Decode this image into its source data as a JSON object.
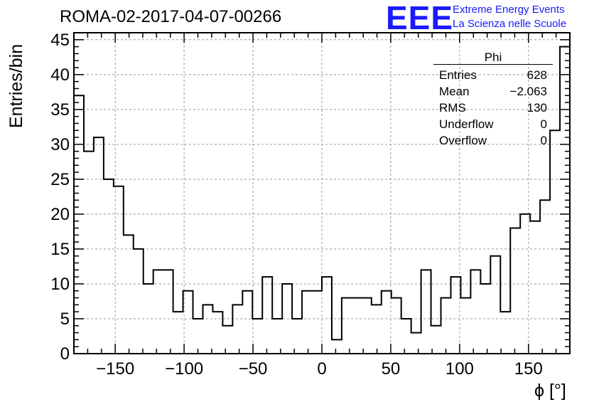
{
  "header": {
    "title": "ROMA-02-2017-04-07-00266",
    "logo_text": "EEE",
    "logo_line1": "Extreme Energy Events",
    "logo_line2": "La Scienza nelle Scuole"
  },
  "stats_box": {
    "title": "Phi",
    "rows": [
      {
        "label": "Entries",
        "value": "628"
      },
      {
        "label": "Mean",
        "value": "−2.063"
      },
      {
        "label": "RMS",
        "value": "130"
      },
      {
        "label": "Underflow",
        "value": "0"
      },
      {
        "label": "Overflow",
        "value": "0"
      }
    ]
  },
  "chart_data": {
    "type": "bar",
    "subtype": "histogram",
    "title": "ROMA-02-2017-04-07-00266",
    "xlabel": "ϕ [°]",
    "ylabel": "Entries/bin",
    "xlim": [
      -180,
      180
    ],
    "ylim": [
      0,
      46
    ],
    "bin_width": 7.2,
    "x_ticks": [
      -150,
      -100,
      -50,
      0,
      50,
      100,
      150
    ],
    "x_tick_labels": [
      "−150",
      "−100",
      "−50",
      "0",
      "50",
      "100",
      "150"
    ],
    "y_ticks": [
      0,
      5,
      10,
      15,
      20,
      25,
      30,
      35,
      40,
      45
    ],
    "y_tick_labels": [
      "0",
      "5",
      "10",
      "15",
      "20",
      "25",
      "30",
      "35",
      "40",
      "45"
    ],
    "grid": true,
    "grid_style": "dashed",
    "values": [
      37,
      29,
      31,
      25,
      24,
      17,
      15,
      10,
      12,
      12,
      6,
      9,
      5,
      7,
      6,
      4,
      7,
      9,
      5,
      11,
      5,
      10,
      5,
      9,
      9,
      11,
      2,
      8,
      8,
      8,
      7,
      9,
      8,
      5,
      3,
      12,
      4,
      8,
      11,
      8,
      12,
      10,
      14,
      6,
      18,
      20,
      19,
      22,
      32,
      44
    ],
    "line_color": "#000000"
  }
}
